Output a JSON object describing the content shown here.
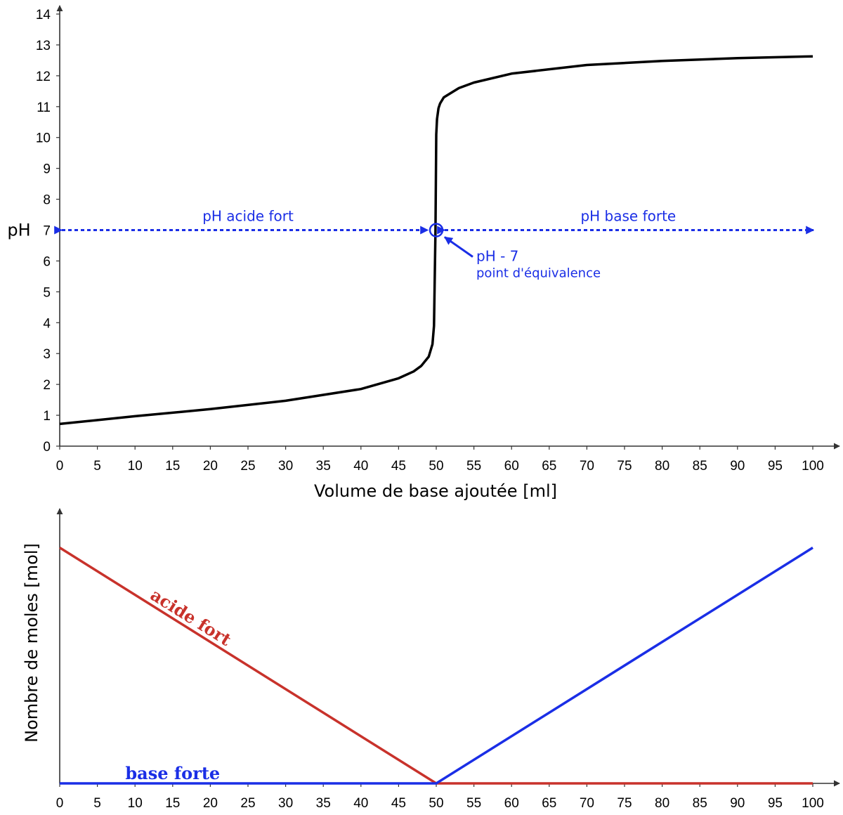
{
  "chart_data": [
    {
      "type": "line",
      "xlabel": "Volume de base ajoutée [ml]",
      "ylabel": "pH",
      "xlim": [
        0,
        100
      ],
      "ylim": [
        0,
        14
      ],
      "x_ticks": [
        "0",
        "5",
        "10",
        "15",
        "20",
        "25",
        "30",
        "35",
        "40",
        "45",
        "50",
        "55",
        "60",
        "65",
        "70",
        "75",
        "80",
        "85",
        "90",
        "95",
        "100"
      ],
      "y_ticks": [
        "0",
        "1",
        "2",
        "3",
        "4",
        "5",
        "6",
        "7",
        "8",
        "9",
        "10",
        "11",
        "12",
        "13",
        "14"
      ],
      "grid": false,
      "series": [
        {
          "color": "#000000",
          "x": [
            0,
            10,
            20,
            30,
            40,
            45,
            47,
            48,
            49,
            49.5,
            49.7,
            49.9,
            50.0,
            50.1,
            50.3,
            50.5,
            51,
            52,
            53,
            55,
            60,
            70,
            80,
            90,
            100
          ],
          "y": [
            0.72,
            0.97,
            1.2,
            1.47,
            1.85,
            2.2,
            2.42,
            2.6,
            2.9,
            3.3,
            3.9,
            7.0,
            10.1,
            10.6,
            10.95,
            11.1,
            11.3,
            11.45,
            11.6,
            11.78,
            12.07,
            12.35,
            12.48,
            12.57,
            12.63
          ]
        }
      ],
      "annotations": {
        "acid_region_label": "pH acide fort",
        "base_region_label": "pH base forte",
        "marker_label_line1": "pH - 7",
        "marker_label_line2": "point d'équivalence",
        "marker_point": [
          50,
          7
        ],
        "reference_level": 7,
        "annotation_color": "#1a2ee6"
      }
    },
    {
      "type": "line",
      "xlabel": "",
      "ylabel": "Nombre de moles [mol]",
      "xlim": [
        0,
        100
      ],
      "ylim": [
        0,
        1.1
      ],
      "x_ticks": [
        "0",
        "5",
        "10",
        "15",
        "20",
        "25",
        "30",
        "35",
        "40",
        "45",
        "50",
        "55",
        "60",
        "65",
        "70",
        "75",
        "80",
        "85",
        "90",
        "95",
        "100"
      ],
      "grid": false,
      "series": [
        {
          "name": "acide fort",
          "color": "#c8322b",
          "x": [
            0,
            50,
            100
          ],
          "y": [
            1,
            0,
            0
          ]
        },
        {
          "name": "base forte",
          "color": "#1a2ee6",
          "x": [
            0,
            50,
            100
          ],
          "y": [
            0,
            0,
            1
          ]
        }
      ]
    }
  ]
}
